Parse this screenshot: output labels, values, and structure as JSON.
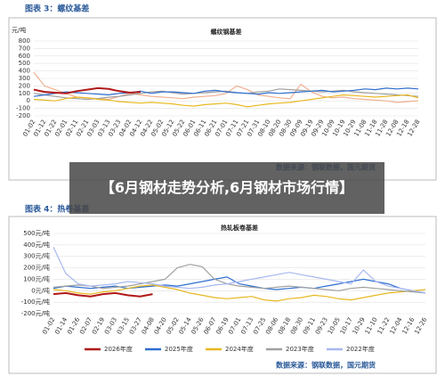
{
  "banner": "【6月钢材走势分析,6月钢材市场行情】",
  "chart_data": [
    {
      "type": "line",
      "header": "图表 3：螺纹基差",
      "title": "螺纹钢基差",
      "ylabel": "元/吨",
      "source": "数据来源：钢联数据，国元期货",
      "categories": [
        "01-02",
        "01-12",
        "01-22",
        "02-01",
        "02-11",
        "02-21",
        "03-03",
        "03-13",
        "03-23",
        "04-02",
        "04-12",
        "04-22",
        "05-02",
        "05-12",
        "05-22",
        "06-01",
        "06-11",
        "06-21",
        "07-01",
        "07-11",
        "07-21",
        "07-31",
        "08-10",
        "08-20",
        "08-30",
        "09-09",
        "09-19",
        "09-29",
        "10-09",
        "10-19",
        "10-29",
        "11-08",
        "11-18",
        "11-28",
        "12-08",
        "12-18",
        "12-28"
      ],
      "ylim": [
        -200,
        800
      ],
      "yticks": [
        -200,
        -100,
        0,
        100,
        200,
        300,
        400,
        500,
        600,
        700,
        800
      ],
      "grid": true,
      "series": [
        {
          "color": "#f0b090",
          "values": [
            380,
            200,
            150,
            100,
            50,
            40,
            30,
            20,
            60,
            100,
            80,
            60,
            50,
            40,
            30,
            50,
            60,
            70,
            100,
            200,
            150,
            80,
            60,
            40,
            30,
            220,
            120,
            60,
            40,
            50,
            30,
            20,
            10,
            0,
            -20,
            -10,
            0
          ]
        },
        {
          "color": "#a0a0a0",
          "values": [
            100,
            80,
            60,
            40,
            30,
            20,
            30,
            50,
            60,
            80,
            100,
            120,
            130,
            110,
            90,
            100,
            110,
            120,
            130,
            110,
            100,
            120,
            130,
            160,
            150,
            140,
            130,
            120,
            130,
            140,
            120,
            110,
            100,
            90,
            80,
            70,
            60
          ]
        },
        {
          "color": "#e8b820",
          "values": [
            20,
            10,
            0,
            30,
            50,
            40,
            20,
            10,
            -10,
            -20,
            -30,
            -20,
            -30,
            -40,
            -60,
            -70,
            -50,
            -40,
            -30,
            -50,
            -80,
            -60,
            -40,
            -30,
            -20,
            0,
            20,
            40,
            60,
            80,
            70,
            60,
            50,
            60,
            70,
            80,
            40
          ]
        },
        {
          "color": "#2f6fcf",
          "values": [
            60,
            80,
            100,
            120,
            110,
            100,
            90,
            80,
            100,
            110,
            130,
            100,
            120,
            120,
            110,
            100,
            130,
            140,
            120,
            110,
            100,
            90,
            110,
            100,
            110,
            120,
            130,
            140,
            120,
            130,
            140,
            160,
            150,
            170,
            160,
            170,
            160
          ]
        },
        {
          "color": "#b01818",
          "values": [
            150,
            120,
            110,
            100,
            130,
            150,
            170,
            160,
            130,
            110,
            120,
            null,
            null,
            null,
            null,
            null,
            null,
            null,
            null,
            null,
            null,
            null,
            null,
            null,
            null,
            null,
            null,
            null,
            null,
            null,
            null,
            null,
            null,
            null,
            null,
            null,
            null
          ]
        }
      ]
    },
    {
      "type": "line",
      "header": "图表 4：热卷基差",
      "title": "热轧板卷基差",
      "source": "数据来源：钢联数据，国元期货",
      "categories": [
        "01-02",
        "01-14",
        "01-26",
        "02-07",
        "02-19",
        "03-03",
        "03-15",
        "03-27",
        "04-08",
        "04-20",
        "05-02",
        "05-14",
        "05-26",
        "06-07",
        "06-19",
        "07-01",
        "07-13",
        "07-25",
        "08-06",
        "08-18",
        "08-30",
        "09-11",
        "09-23",
        "10-05",
        "10-17",
        "10-29",
        "11-10",
        "11-22",
        "12-04",
        "12-16",
        "12-26"
      ],
      "ylim": [
        -200,
        500
      ],
      "yticks": [
        {
          "value": -200,
          "label": "-200元/吨"
        },
        {
          "value": -100,
          "label": "-100元/吨"
        },
        {
          "value": 0,
          "label": "0元/吨"
        },
        {
          "value": 100,
          "label": "100元/吨"
        },
        {
          "value": 200,
          "label": "200元/吨"
        },
        {
          "value": 300,
          "label": "300元/吨"
        },
        {
          "value": 400,
          "label": "400元/吨"
        },
        {
          "value": 500,
          "label": "500元/吨"
        }
      ],
      "grid": true,
      "series": [
        {
          "name": "2026年度",
          "color": "#b01818",
          "values": [
            -30,
            -20,
            -40,
            -50,
            -30,
            -20,
            -40,
            -50,
            -30,
            null,
            null,
            null,
            null,
            null,
            null,
            null,
            null,
            null,
            null,
            null,
            null,
            null,
            null,
            null,
            null,
            null,
            null,
            null,
            null,
            null,
            null
          ]
        },
        {
          "name": "2025年度",
          "color": "#2f6fcf",
          "values": [
            20,
            40,
            30,
            20,
            30,
            40,
            20,
            30,
            40,
            50,
            40,
            60,
            80,
            100,
            120,
            60,
            40,
            20,
            10,
            20,
            30,
            20,
            40,
            60,
            80,
            100,
            80,
            60,
            20,
            0,
            -20
          ]
        },
        {
          "name": "2024年度",
          "color": "#e8b820",
          "values": [
            10,
            0,
            -20,
            -30,
            -10,
            0,
            20,
            40,
            50,
            30,
            10,
            -20,
            -40,
            -60,
            -70,
            -60,
            -50,
            -80,
            -90,
            -70,
            -60,
            -40,
            -50,
            -70,
            -80,
            -60,
            -40,
            -20,
            -10,
            0,
            10
          ]
        },
        {
          "name": "2023年度",
          "color": "#a0a0a0",
          "values": [
            30,
            40,
            50,
            40,
            20,
            30,
            40,
            60,
            80,
            100,
            200,
            230,
            210,
            100,
            60,
            40,
            30,
            20,
            30,
            40,
            30,
            20,
            10,
            0,
            20,
            30,
            20,
            10,
            0,
            -10,
            -20
          ]
        },
        {
          "name": "2022年度",
          "color": "#a8b8f0",
          "values": [
            380,
            150,
            60,
            40,
            50,
            60,
            80,
            70,
            60,
            40,
            30,
            20,
            30,
            50,
            60,
            80,
            100,
            120,
            140,
            160,
            140,
            120,
            100,
            80,
            60,
            180,
            80,
            40,
            20,
            0,
            -20
          ]
        }
      ]
    }
  ]
}
